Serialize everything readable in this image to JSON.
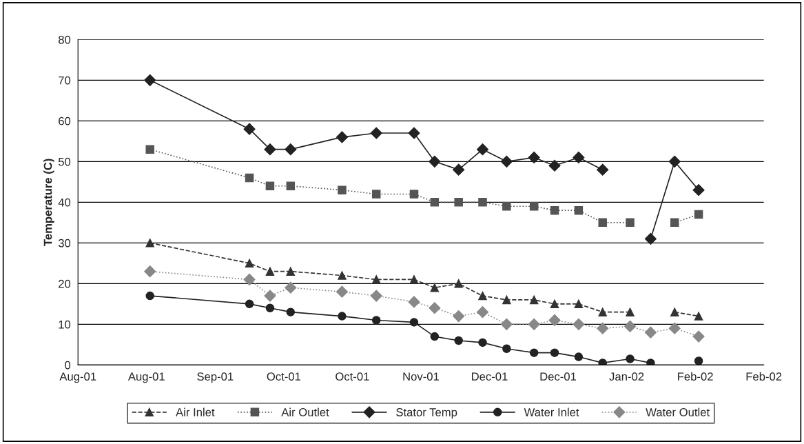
{
  "chart_data": {
    "type": "line",
    "ylabel": "Temperature (C)",
    "x": [
      "2001-08-29",
      "2001-09-27",
      "2001-10-03",
      "2001-10-09",
      "2001-10-24",
      "2001-11-03",
      "2001-11-14",
      "2001-11-20",
      "2001-11-27",
      "2001-12-04",
      "2001-12-11",
      "2001-12-19",
      "2001-12-25",
      "2002-01-01",
      "2002-01-08",
      "2002-01-16",
      "2002-01-22",
      "2002-01-29",
      "2002-02-05"
    ],
    "series": [
      {
        "name": "Air Inlet",
        "color": "#333333",
        "marker": "triangle",
        "line_style": "dashed",
        "values": [
          30,
          25,
          23,
          23,
          22,
          21,
          21,
          19,
          20,
          17,
          16,
          16,
          15,
          15,
          13,
          13,
          null,
          13,
          12
        ]
      },
      {
        "name": "Air Outlet",
        "color": "#555555",
        "marker": "square",
        "line_style": "dotted",
        "values": [
          53,
          46,
          44,
          44,
          43,
          42,
          42,
          40,
          40,
          40,
          39,
          39,
          38,
          38,
          35,
          35,
          null,
          35,
          37
        ]
      },
      {
        "name": "Stator Temp",
        "color": "#222222",
        "marker": "diamond",
        "line_style": "solid",
        "values": [
          70,
          58,
          53,
          53,
          56,
          57,
          57,
          50,
          48,
          53,
          50,
          51,
          49,
          51,
          48,
          null,
          31,
          50,
          43
        ]
      },
      {
        "name": "Water Inlet",
        "color": "#222222",
        "marker": "circle",
        "line_style": "solid",
        "values": [
          17,
          15,
          14,
          13,
          12,
          11,
          10.5,
          7,
          6,
          5.5,
          4,
          3,
          3,
          2,
          0.5,
          1.5,
          0.5,
          null,
          1
        ]
      },
      {
        "name": "Water Outlet",
        "color": "#888888",
        "marker": "diamond",
        "line_style": "dotted",
        "values": [
          23,
          21,
          17,
          19,
          18,
          17,
          15.5,
          14,
          12,
          13,
          10,
          10,
          11,
          10,
          9,
          9.5,
          8,
          9,
          7
        ]
      }
    ],
    "xlim": [
      "2001-08-08",
      "2002-02-24"
    ],
    "xticks": [
      {
        "value": "2001-08-08",
        "label": "Aug-01"
      },
      {
        "value": "2001-08-28",
        "label": "Aug-01"
      },
      {
        "value": "2001-09-17",
        "label": "Sep-01"
      },
      {
        "value": "2001-10-07",
        "label": "Oct-01"
      },
      {
        "value": "2001-10-27",
        "label": "Oct-01"
      },
      {
        "value": "2001-11-16",
        "label": "Nov-01"
      },
      {
        "value": "2001-12-06",
        "label": "Dec-01"
      },
      {
        "value": "2001-12-26",
        "label": "Dec-01"
      },
      {
        "value": "2002-01-15",
        "label": "Jan-02"
      },
      {
        "value": "2002-02-04",
        "label": "Feb-02"
      },
      {
        "value": "2002-02-24",
        "label": "Feb-02"
      }
    ],
    "ylim": [
      0,
      80
    ],
    "yticks": [
      0,
      10,
      20,
      30,
      40,
      50,
      60,
      70,
      80
    ],
    "grid": "y",
    "legend": "bottom"
  }
}
